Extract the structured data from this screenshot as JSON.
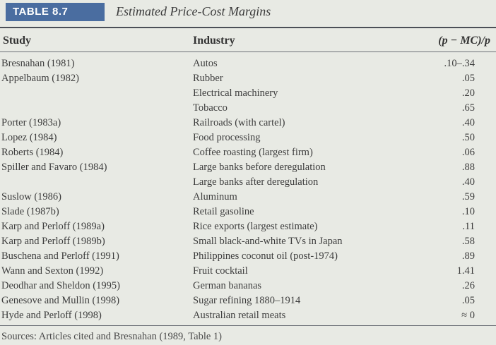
{
  "table": {
    "label": "TABLE 8.7",
    "caption": "Estimated Price-Cost Margins",
    "headers": {
      "study": "Study",
      "industry": "Industry",
      "margin": "(p − MC)/p"
    },
    "rows": [
      {
        "study": "Bresnahan (1981)",
        "industry": "Autos",
        "margin": ".10–.34"
      },
      {
        "study": "Appelbaum (1982)",
        "industry": "Rubber",
        "margin": ".05"
      },
      {
        "study": "",
        "industry": "Electrical machinery",
        "margin": ".20"
      },
      {
        "study": "",
        "industry": "Tobacco",
        "margin": ".65"
      },
      {
        "study": "Porter (1983a)",
        "industry": "Railroads (with cartel)",
        "margin": ".40"
      },
      {
        "study": "Lopez (1984)",
        "industry": "Food processing",
        "margin": ".50"
      },
      {
        "study": "Roberts (1984)",
        "industry": "Coffee roasting (largest firm)",
        "margin": ".06"
      },
      {
        "study": "Spiller and Favaro (1984)",
        "industry": "Large banks before deregulation",
        "margin": ".88"
      },
      {
        "study": "",
        "industry": "Large banks after deregulation",
        "margin": ".40"
      },
      {
        "study": "Suslow (1986)",
        "industry": "Aluminum",
        "margin": ".59"
      },
      {
        "study": "Slade (1987b)",
        "industry": "Retail gasoline",
        "margin": ".10"
      },
      {
        "study": "Karp and Perloff (1989a)",
        "industry": "Rice exports (largest estimate)",
        "margin": ".11"
      },
      {
        "study": "Karp and Perloff (1989b)",
        "industry": "Small black-and-white TVs in Japan",
        "margin": ".58"
      },
      {
        "study": "Buschena and Perloff (1991)",
        "industry": "Philippines coconut oil (post-1974)",
        "margin": ".89"
      },
      {
        "study": "Wann and Sexton (1992)",
        "industry": "Fruit cocktail",
        "margin": "1.41"
      },
      {
        "study": "Deodhar and Sheldon (1995)",
        "industry": "German bananas",
        "margin": ".26"
      },
      {
        "study": "Genesove and Mullin (1998)",
        "industry": "Sugar refining 1880–1914",
        "margin": ".05"
      },
      {
        "study": "Hyde and Perloff (1998)",
        "industry": "Australian retail meats",
        "margin": "≈ 0"
      }
    ],
    "sources": "Sources: Articles cited and Bresnahan (1989, Table 1)"
  }
}
